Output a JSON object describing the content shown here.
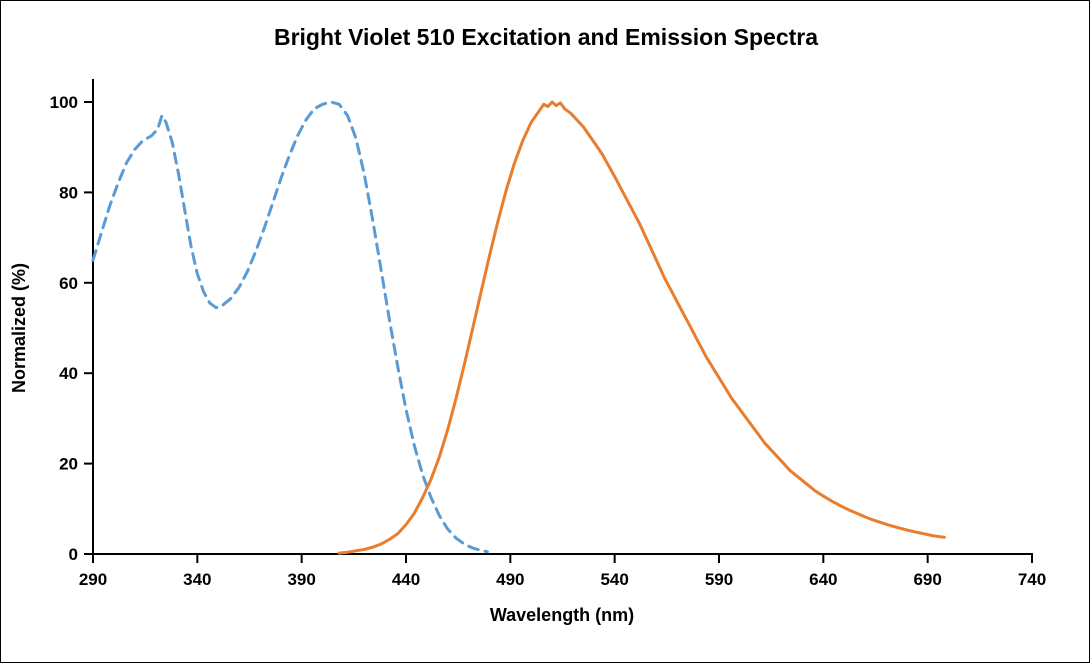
{
  "chart_data": {
    "type": "line",
    "title": "Bright Violet 510 Excitation and Emission Spectra",
    "xlabel": "Wavelength (nm)",
    "ylabel": "Normalized (%)",
    "xlim": [
      290,
      740
    ],
    "ylim": [
      0,
      100
    ],
    "xticks": [
      290,
      340,
      390,
      440,
      490,
      540,
      590,
      640,
      690,
      740
    ],
    "yticks": [
      0,
      20,
      40,
      60,
      80,
      100
    ],
    "grid": false,
    "legend": "none",
    "axis_color": "#000000",
    "series": [
      {
        "name": "Excitation",
        "style": "dashed",
        "color": "#5B9BD5",
        "points": [
          [
            290,
            65
          ],
          [
            294,
            71
          ],
          [
            298,
            77
          ],
          [
            302,
            82
          ],
          [
            306,
            86.5
          ],
          [
            310,
            89.5
          ],
          [
            314,
            91.5
          ],
          [
            318,
            92.5
          ],
          [
            321,
            94
          ],
          [
            323,
            97
          ],
          [
            325,
            95.5
          ],
          [
            328,
            91
          ],
          [
            331,
            84
          ],
          [
            334,
            76
          ],
          [
            337,
            68
          ],
          [
            340,
            62
          ],
          [
            343,
            58
          ],
          [
            346,
            55.5
          ],
          [
            349,
            54.5
          ],
          [
            352,
            55
          ],
          [
            356,
            56.5
          ],
          [
            360,
            59
          ],
          [
            364,
            62.5
          ],
          [
            368,
            67
          ],
          [
            372,
            72
          ],
          [
            376,
            77.5
          ],
          [
            380,
            83
          ],
          [
            384,
            88
          ],
          [
            388,
            92.5
          ],
          [
            392,
            96
          ],
          [
            396,
            98.5
          ],
          [
            400,
            99.5
          ],
          [
            404,
            100
          ],
          [
            408,
            99.5
          ],
          [
            412,
            97
          ],
          [
            416,
            92
          ],
          [
            420,
            84
          ],
          [
            424,
            74
          ],
          [
            428,
            63
          ],
          [
            432,
            52
          ],
          [
            436,
            41.5
          ],
          [
            440,
            32
          ],
          [
            444,
            24
          ],
          [
            448,
            17.5
          ],
          [
            452,
            12.5
          ],
          [
            456,
            8.5
          ],
          [
            460,
            5.5
          ],
          [
            464,
            3.5
          ],
          [
            468,
            2.2
          ],
          [
            472,
            1.3
          ],
          [
            476,
            0.8
          ],
          [
            479,
            0.5
          ]
        ]
      },
      {
        "name": "Emission",
        "style": "solid",
        "color": "#E87D2E",
        "points": [
          [
            408,
            0.2
          ],
          [
            412,
            0.4
          ],
          [
            416,
            0.7
          ],
          [
            420,
            1
          ],
          [
            424,
            1.5
          ],
          [
            428,
            2.2
          ],
          [
            432,
            3.2
          ],
          [
            436,
            4.5
          ],
          [
            440,
            6.5
          ],
          [
            444,
            9
          ],
          [
            448,
            12.5
          ],
          [
            452,
            16.5
          ],
          [
            456,
            21.5
          ],
          [
            460,
            27.5
          ],
          [
            464,
            34.5
          ],
          [
            468,
            42
          ],
          [
            472,
            50
          ],
          [
            476,
            58
          ],
          [
            480,
            66
          ],
          [
            484,
            73.5
          ],
          [
            488,
            80.5
          ],
          [
            492,
            86.5
          ],
          [
            496,
            91.5
          ],
          [
            500,
            95.5
          ],
          [
            503,
            97.5
          ],
          [
            506,
            99.5
          ],
          [
            508,
            99
          ],
          [
            510,
            100
          ],
          [
            512,
            99.2
          ],
          [
            514,
            99.8
          ],
          [
            516,
            98.5
          ],
          [
            519,
            97.5
          ],
          [
            522,
            96
          ],
          [
            525,
            94.5
          ],
          [
            528,
            92.5
          ],
          [
            531,
            90.5
          ],
          [
            534,
            88.5
          ],
          [
            537,
            86
          ],
          [
            540,
            83.5
          ],
          [
            544,
            80
          ],
          [
            548,
            76.5
          ],
          [
            552,
            73
          ],
          [
            556,
            69
          ],
          [
            560,
            65
          ],
          [
            564,
            61
          ],
          [
            568,
            57.5
          ],
          [
            572,
            54
          ],
          [
            576,
            50.5
          ],
          [
            580,
            47
          ],
          [
            584,
            43.5
          ],
          [
            588,
            40.5
          ],
          [
            592,
            37.5
          ],
          [
            596,
            34.5
          ],
          [
            600,
            32
          ],
          [
            604,
            29.5
          ],
          [
            608,
            27
          ],
          [
            612,
            24.5
          ],
          [
            616,
            22.5
          ],
          [
            620,
            20.5
          ],
          [
            624,
            18.5
          ],
          [
            628,
            17
          ],
          [
            632,
            15.5
          ],
          [
            636,
            14
          ],
          [
            640,
            12.8
          ],
          [
            644,
            11.7
          ],
          [
            648,
            10.7
          ],
          [
            652,
            9.8
          ],
          [
            656,
            9
          ],
          [
            660,
            8.2
          ],
          [
            664,
            7.5
          ],
          [
            668,
            6.9
          ],
          [
            672,
            6.3
          ],
          [
            676,
            5.8
          ],
          [
            680,
            5.3
          ],
          [
            684,
            4.9
          ],
          [
            688,
            4.5
          ],
          [
            692,
            4.1
          ],
          [
            696,
            3.8
          ],
          [
            698,
            3.7
          ]
        ]
      }
    ]
  }
}
